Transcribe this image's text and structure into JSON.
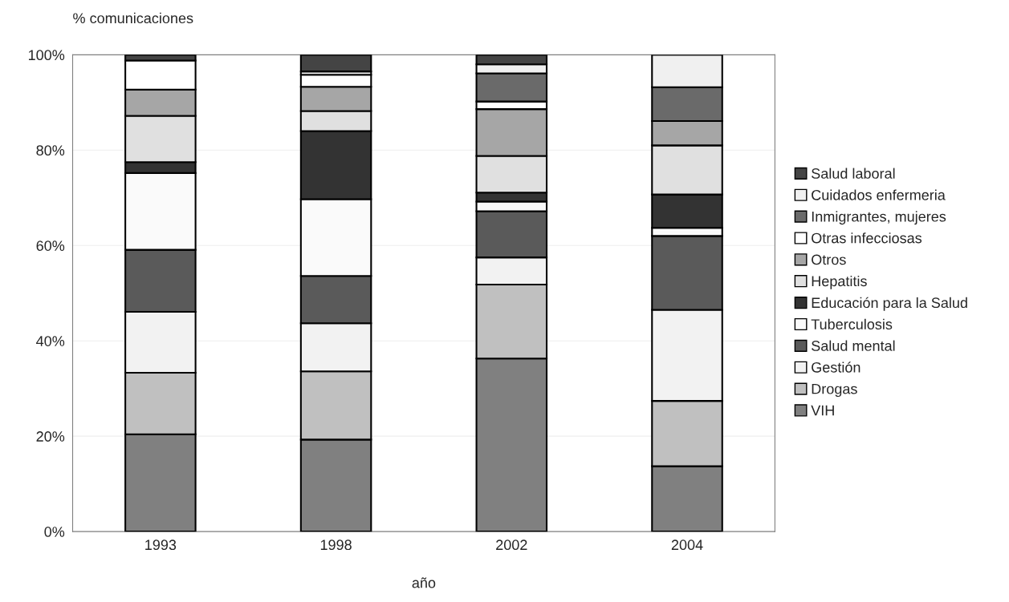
{
  "chart_data": {
    "type": "bar",
    "stacked": true,
    "ylabel": "% comunicaciones",
    "xlabel": "año",
    "categories": [
      "1993",
      "1998",
      "2002",
      "2004"
    ],
    "series": [
      {
        "name": "VIH",
        "color": "#808080",
        "values": [
          20.4,
          19.3,
          36.3,
          13.7
        ]
      },
      {
        "name": "Drogas",
        "color": "#c0c0c0",
        "values": [
          12.9,
          14.3,
          15.5,
          13.7
        ]
      },
      {
        "name": "Gestión",
        "color": "#f2f2f2",
        "values": [
          12.8,
          10.1,
          5.7,
          19.1
        ]
      },
      {
        "name": "Salud mental",
        "color": "#5a5a5a",
        "values": [
          13.0,
          9.9,
          9.7,
          15.5
        ]
      },
      {
        "name": "Tuberculosis",
        "color": "#fafafa",
        "values": [
          16.1,
          16.1,
          2.0,
          1.7
        ]
      },
      {
        "name": "Educación para la Salud",
        "color": "#333333",
        "values": [
          2.3,
          14.3,
          1.9,
          7.0
        ]
      },
      {
        "name": "Hepatitis",
        "color": "#e0e0e0",
        "values": [
          9.7,
          4.2,
          7.7,
          10.3
        ]
      },
      {
        "name": "Otros",
        "color": "#a6a6a6",
        "values": [
          5.5,
          5.1,
          9.8,
          5.1
        ]
      },
      {
        "name": "Otras infecciosas",
        "color": "#ffffff",
        "values": [
          6.1,
          2.5,
          1.6,
          null
        ]
      },
      {
        "name": "Inmigrantes, mujeres",
        "color": "#6a6a6a",
        "values": [
          null,
          null,
          5.9,
          7.1
        ]
      },
      {
        "name": "Cuidados enfermeria",
        "color": "#f0f0f0",
        "values": [
          null,
          0.7,
          1.9,
          6.8
        ]
      },
      {
        "name": "Salud laboral",
        "color": "#444444",
        "values": [
          1.2,
          3.5,
          2.0,
          null
        ]
      }
    ],
    "ylim": [
      0,
      100
    ],
    "yticks": [
      {
        "value": 0,
        "label": "0%"
      },
      {
        "value": 20,
        "label": "20%"
      },
      {
        "value": 40,
        "label": "40%"
      },
      {
        "value": 60,
        "label": "60%"
      },
      {
        "value": 80,
        "label": "80%"
      },
      {
        "value": 100,
        "label": "100%"
      }
    ],
    "grid": "y",
    "legend": "right"
  }
}
